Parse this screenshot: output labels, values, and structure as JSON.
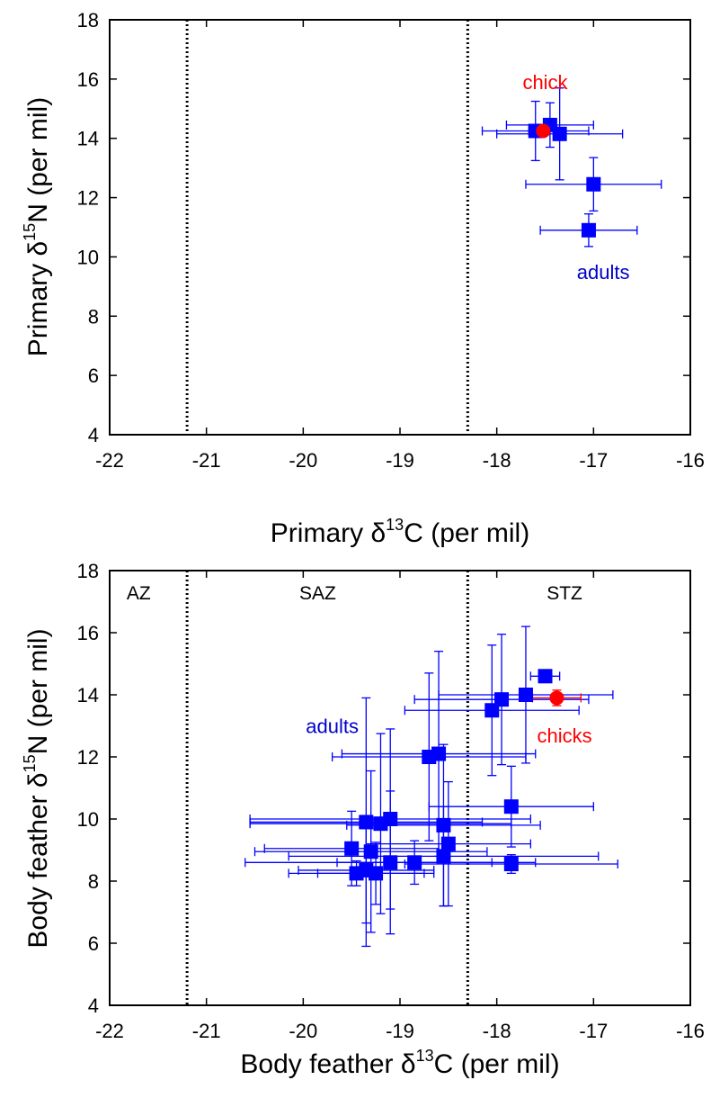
{
  "chart_data": [
    {
      "type": "scatter",
      "title": "",
      "xlabel": {
        "prefix": "Primary ",
        "symbol": "δ",
        "sup": "13",
        "suffix": "C (per mil)"
      },
      "ylabel": {
        "prefix": "Primary ",
        "symbol": "δ",
        "sup": "15",
        "suffix": "N (per mil)"
      },
      "xlim": [
        -22,
        -16
      ],
      "ylim": [
        4,
        18
      ],
      "xticks": [
        -22,
        -21,
        -20,
        -19,
        -18,
        -17,
        -16
      ],
      "yticks": [
        4,
        6,
        8,
        10,
        12,
        14,
        16,
        18
      ],
      "grid": false,
      "boundary_lines_x": [
        -21.2,
        -18.3
      ],
      "region_labels": [],
      "annotations": [
        {
          "text": "chick",
          "x": -17.5,
          "y": 15.9,
          "color": "#ff0000"
        },
        {
          "text": "adults",
          "x": -16.9,
          "y": 9.5,
          "color": "#0000cc"
        }
      ],
      "series": [
        {
          "name": "adults",
          "color": "#0000ff",
          "marker": "square",
          "points": [
            {
              "x": -17.45,
              "y": 14.45,
              "xerr": 0.45,
              "yerr": 0.75
            },
            {
              "x": -17.6,
              "y": 14.25,
              "xerr": 0.55,
              "yerr": 1.0
            },
            {
              "x": -17.35,
              "y": 14.15,
              "xerr": 0.65,
              "yerr": 1.55
            },
            {
              "x": -17.0,
              "y": 12.45,
              "xerr": 0.7,
              "yerr": 0.9
            },
            {
              "x": -17.05,
              "y": 10.9,
              "xerr": 0.5,
              "yerr": 0.55
            }
          ]
        },
        {
          "name": "chick",
          "color": "#ff0000",
          "marker": "circle",
          "points": [
            {
              "x": -17.52,
              "y": 14.25,
              "xerr": 0.15,
              "yerr": 0.15
            }
          ]
        }
      ]
    },
    {
      "type": "scatter",
      "title": "",
      "xlabel": {
        "prefix": "Body feather ",
        "symbol": "δ",
        "sup": "13",
        "suffix": "C (per mil)"
      },
      "ylabel": {
        "prefix": "Body feather ",
        "symbol": "δ",
        "sup": "15",
        "suffix": "N (per mil)"
      },
      "xlim": [
        -22,
        -16
      ],
      "ylim": [
        4,
        18
      ],
      "xticks": [
        -22,
        -21,
        -20,
        -19,
        -18,
        -17,
        -16
      ],
      "yticks": [
        4,
        6,
        8,
        10,
        12,
        14,
        16,
        18
      ],
      "grid": false,
      "boundary_lines_x": [
        -21.2,
        -18.3
      ],
      "region_labels": [
        {
          "text": "AZ",
          "x": -21.7,
          "y": 17.3
        },
        {
          "text": "SAZ",
          "x": -19.85,
          "y": 17.3
        },
        {
          "text": "STZ",
          "x": -17.3,
          "y": 17.3
        }
      ],
      "annotations": [
        {
          "text": "adults",
          "x": -19.7,
          "y": 13.0,
          "color": "#0000cc"
        },
        {
          "text": "chicks",
          "x": -17.3,
          "y": 12.7,
          "color": "#ff0000"
        }
      ],
      "series": [
        {
          "name": "adults",
          "color": "#0000ff",
          "marker": "square",
          "points": [
            {
              "x": -17.5,
              "y": 14.6,
              "xerr": 0.15,
              "yerr": 0.2
            },
            {
              "x": -17.7,
              "y": 14.0,
              "xerr": 0.9,
              "yerr": 2.2
            },
            {
              "x": -17.95,
              "y": 13.85,
              "xerr": 0.9,
              "yerr": 2.1
            },
            {
              "x": -18.05,
              "y": 13.5,
              "xerr": 0.9,
              "yerr": 2.1
            },
            {
              "x": -18.6,
              "y": 12.1,
              "xerr": 1.0,
              "yerr": 3.3
            },
            {
              "x": -18.7,
              "y": 12.0,
              "xerr": 1.0,
              "yerr": 2.7
            },
            {
              "x": -17.85,
              "y": 10.4,
              "xerr": 0.85,
              "yerr": 1.3
            },
            {
              "x": -19.1,
              "y": 10.0,
              "xerr": 1.45,
              "yerr": 2.9
            },
            {
              "x": -19.2,
              "y": 9.85,
              "xerr": 1.35,
              "yerr": 2.9
            },
            {
              "x": -19.35,
              "y": 9.9,
              "xerr": 1.2,
              "yerr": 4.0
            },
            {
              "x": -18.55,
              "y": 9.8,
              "xerr": 1.0,
              "yerr": 2.6
            },
            {
              "x": -19.5,
              "y": 9.05,
              "xerr": 0.9,
              "yerr": 1.2
            },
            {
              "x": -19.3,
              "y": 8.95,
              "xerr": 1.2,
              "yerr": 2.6
            },
            {
              "x": -18.5,
              "y": 9.2,
              "xerr": 0.85,
              "yerr": 2.0
            },
            {
              "x": -18.55,
              "y": 8.8,
              "xerr": 1.6,
              "yerr": 1.6
            },
            {
              "x": -19.1,
              "y": 8.6,
              "xerr": 1.5,
              "yerr": 2.3
            },
            {
              "x": -18.85,
              "y": 8.6,
              "xerr": 0.8,
              "yerr": 0.7
            },
            {
              "x": -17.85,
              "y": 8.55,
              "xerr": 1.1,
              "yerr": 0.3
            },
            {
              "x": -19.35,
              "y": 8.35,
              "xerr": 0.7,
              "yerr": 1.7
            },
            {
              "x": -19.25,
              "y": 8.25,
              "xerr": 0.6,
              "yerr": 1.0
            },
            {
              "x": -19.45,
              "y": 8.25,
              "xerr": 0.7,
              "yerr": 0.4
            }
          ]
        },
        {
          "name": "chicks",
          "color": "#ff0000",
          "marker": "circle",
          "points": [
            {
              "x": -17.38,
              "y": 13.9,
              "xerr": 0.25,
              "yerr": 0.25
            }
          ]
        }
      ]
    }
  ]
}
